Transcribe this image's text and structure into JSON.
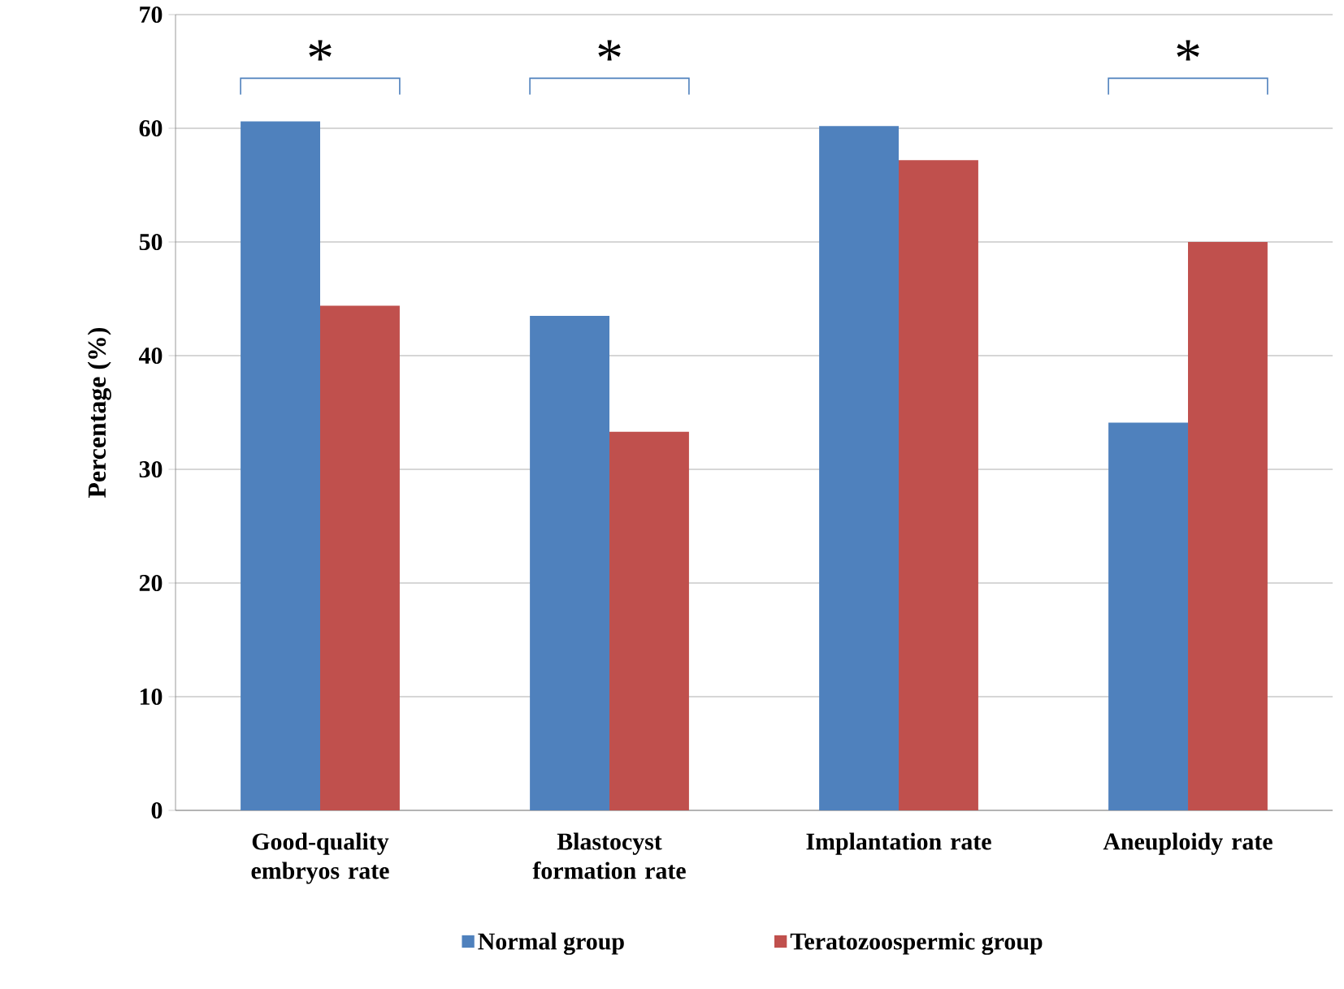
{
  "chart_data": {
    "type": "bar",
    "ylabel": "Percentage (%)",
    "categories": [
      "Good-quality embryos rate",
      "Blastocyst formation rate",
      "Implantation rate",
      "Aneuploidy rate"
    ],
    "series": [
      {
        "name": "Normal group",
        "color": "#4f81bd",
        "values": [
          60.6,
          43.5,
          60.2,
          34.1
        ]
      },
      {
        "name": "Teratozoospermic group",
        "color": "#c0504d",
        "values": [
          44.4,
          33.3,
          57.2,
          50.0
        ]
      }
    ],
    "ylim": [
      0,
      70
    ],
    "yticks": [
      0,
      10,
      20,
      30,
      40,
      50,
      60,
      70
    ],
    "grid": "y",
    "legend": "bottom",
    "annotations": [
      "*",
      "*",
      "*"
    ]
  }
}
